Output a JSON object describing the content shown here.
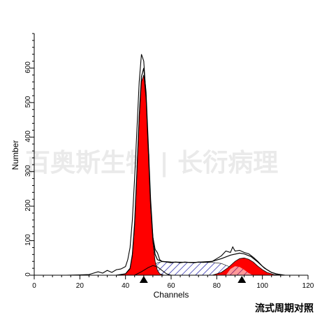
{
  "chart_data": {
    "type": "area",
    "title": "",
    "xlabel": "Channels",
    "ylabel": "Number",
    "xlim": [
      0,
      120
    ],
    "ylim": [
      0,
      700
    ],
    "x_ticks": [
      0,
      20,
      40,
      60,
      80,
      100,
      120
    ],
    "y_ticks": [
      0,
      100,
      200,
      300,
      400,
      500,
      600
    ],
    "caption": "流式周期对照",
    "watermark": "百奥斯生物 | 长衍病理",
    "peak_markers": [
      48,
      91
    ],
    "series": [
      {
        "kind": "histogram",
        "color": "#000000",
        "points": [
          [
            14,
            0
          ],
          [
            20,
            1
          ],
          [
            24,
            2
          ],
          [
            28,
            10
          ],
          [
            30,
            6
          ],
          [
            32,
            14
          ],
          [
            34,
            8
          ],
          [
            36,
            16
          ],
          [
            38,
            18
          ],
          [
            40,
            25
          ],
          [
            41,
            45
          ],
          [
            42,
            80
          ],
          [
            43,
            160
          ],
          [
            44,
            280
          ],
          [
            45,
            420
          ],
          [
            46,
            560
          ],
          [
            47,
            640
          ],
          [
            48,
            620
          ],
          [
            49,
            520
          ],
          [
            50,
            360
          ],
          [
            51,
            200
          ],
          [
            52,
            110
          ],
          [
            53,
            75
          ],
          [
            54,
            65
          ],
          [
            55,
            45
          ],
          [
            56,
            40
          ],
          [
            58,
            38
          ],
          [
            60,
            36
          ],
          [
            62,
            38
          ],
          [
            64,
            36
          ],
          [
            66,
            38
          ],
          [
            68,
            37
          ],
          [
            70,
            36
          ],
          [
            72,
            38
          ],
          [
            74,
            37
          ],
          [
            76,
            38
          ],
          [
            78,
            40
          ],
          [
            80,
            48
          ],
          [
            82,
            56
          ],
          [
            84,
            70
          ],
          [
            86,
            66
          ],
          [
            87,
            82
          ],
          [
            88,
            70
          ],
          [
            90,
            72
          ],
          [
            92,
            66
          ],
          [
            94,
            62
          ],
          [
            96,
            52
          ],
          [
            98,
            40
          ],
          [
            100,
            26
          ],
          [
            102,
            16
          ],
          [
            104,
            8
          ],
          [
            106,
            4
          ],
          [
            110,
            0
          ]
        ]
      },
      {
        "kind": "fit-total",
        "color": "#000000",
        "points": [
          [
            36,
            0
          ],
          [
            40,
            4
          ],
          [
            42,
            20
          ],
          [
            43,
            60
          ],
          [
            44,
            150
          ],
          [
            45,
            300
          ],
          [
            46,
            460
          ],
          [
            47,
            575
          ],
          [
            48,
            600
          ],
          [
            49,
            530
          ],
          [
            50,
            380
          ],
          [
            51,
            220
          ],
          [
            52,
            110
          ],
          [
            53,
            60
          ],
          [
            54,
            45
          ],
          [
            56,
            40
          ],
          [
            60,
            38
          ],
          [
            70,
            37
          ],
          [
            78,
            40
          ],
          [
            82,
            48
          ],
          [
            86,
            58
          ],
          [
            90,
            64
          ],
          [
            92,
            62
          ],
          [
            95,
            54
          ],
          [
            98,
            38
          ],
          [
            101,
            20
          ],
          [
            104,
            8
          ],
          [
            108,
            0
          ]
        ]
      },
      {
        "kind": "G0/G1",
        "color": "#ff0000",
        "points": [
          [
            36,
            0
          ],
          [
            40,
            4
          ],
          [
            42,
            18
          ],
          [
            43,
            55
          ],
          [
            44,
            140
          ],
          [
            45,
            290
          ],
          [
            46,
            450
          ],
          [
            47,
            560
          ],
          [
            48,
            580
          ],
          [
            49,
            510
          ],
          [
            50,
            360
          ],
          [
            51,
            200
          ],
          [
            52,
            95
          ],
          [
            53,
            40
          ],
          [
            54,
            14
          ],
          [
            55,
            4
          ],
          [
            57,
            0
          ]
        ]
      },
      {
        "kind": "G2/M",
        "color": "#ff0000",
        "points": [
          [
            78,
            0
          ],
          [
            82,
            8
          ],
          [
            85,
            22
          ],
          [
            88,
            40
          ],
          [
            90,
            48
          ],
          [
            92,
            50
          ],
          [
            94,
            46
          ],
          [
            96,
            38
          ],
          [
            98,
            26
          ],
          [
            100,
            16
          ],
          [
            102,
            8
          ],
          [
            105,
            2
          ],
          [
            108,
            0
          ]
        ]
      },
      {
        "kind": "S-hatched",
        "color": "#0000aa",
        "points": [
          [
            46,
            0
          ],
          [
            48,
            8
          ],
          [
            50,
            18
          ],
          [
            52,
            28
          ],
          [
            54,
            36
          ],
          [
            56,
            39
          ],
          [
            60,
            38
          ],
          [
            70,
            37
          ],
          [
            78,
            37
          ],
          [
            82,
            34
          ],
          [
            85,
            26
          ],
          [
            88,
            18
          ],
          [
            91,
            10
          ],
          [
            94,
            4
          ],
          [
            97,
            0
          ]
        ]
      },
      {
        "kind": "dip-curve",
        "color": "#000000",
        "points": [
          [
            44,
            0
          ],
          [
            47,
            10
          ],
          [
            50,
            22
          ],
          [
            52,
            28
          ],
          [
            54,
            24
          ],
          [
            56,
            14
          ],
          [
            58,
            4
          ],
          [
            60,
            0
          ]
        ]
      }
    ]
  }
}
